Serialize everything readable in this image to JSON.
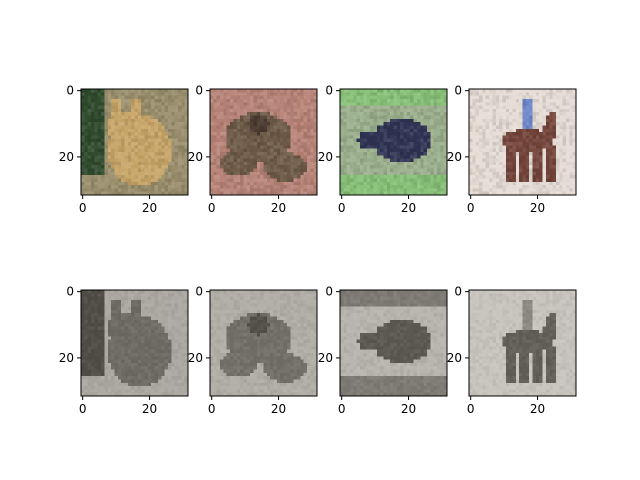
{
  "figure": {
    "background": "#ffffff"
  },
  "chart_data": {
    "type": "image-grid",
    "image_size": 32,
    "rows": 2,
    "cols": 4,
    "xticks": [
      0,
      20
    ],
    "yticks": [
      0,
      20
    ],
    "xlim": [
      -0.5,
      31.5
    ],
    "ylim": [
      31.5,
      -0.5
    ],
    "axis_color": "#000000",
    "panels": [
      {
        "row": 0,
        "col": 0,
        "subject": "cat",
        "mode": "color",
        "palette": {
          "bg": "#9a8f6c",
          "fg": "#c7a567",
          "accent": "#2f4a2c"
        }
      },
      {
        "row": 0,
        "col": 1,
        "subject": "frog",
        "mode": "color",
        "palette": {
          "bg": "#b88377",
          "fg": "#6e5a47",
          "accent": "#4a3a30"
        }
      },
      {
        "row": 0,
        "col": 2,
        "subject": "bird",
        "mode": "color",
        "palette": {
          "bg": "#9bb08d",
          "fg": "#2f3454",
          "accent": "#87c177"
        }
      },
      {
        "row": 0,
        "col": 3,
        "subject": "horse",
        "mode": "color",
        "palette": {
          "bg": "#e6dcd6",
          "fg": "#73443a",
          "accent": "#6b86c9"
        }
      },
      {
        "row": 1,
        "col": 0,
        "subject": "cat",
        "mode": "grayscale",
        "palette": {
          "bg": "#a9a59b",
          "fg": "#6a6661",
          "accent": "#4b4845"
        }
      },
      {
        "row": 1,
        "col": 1,
        "subject": "frog",
        "mode": "grayscale",
        "palette": {
          "bg": "#aeaaa0",
          "fg": "#6f6b63",
          "accent": "#4e4b46"
        }
      },
      {
        "row": 1,
        "col": 2,
        "subject": "bird",
        "mode": "grayscale",
        "palette": {
          "bg": "#b6b1a6",
          "fg": "#57534d",
          "accent": "#7b766e"
        }
      },
      {
        "row": 1,
        "col": 3,
        "subject": "horse",
        "mode": "grayscale",
        "palette": {
          "bg": "#c5c1b6",
          "fg": "#5f5a53",
          "accent": "#8c877e"
        }
      }
    ]
  }
}
